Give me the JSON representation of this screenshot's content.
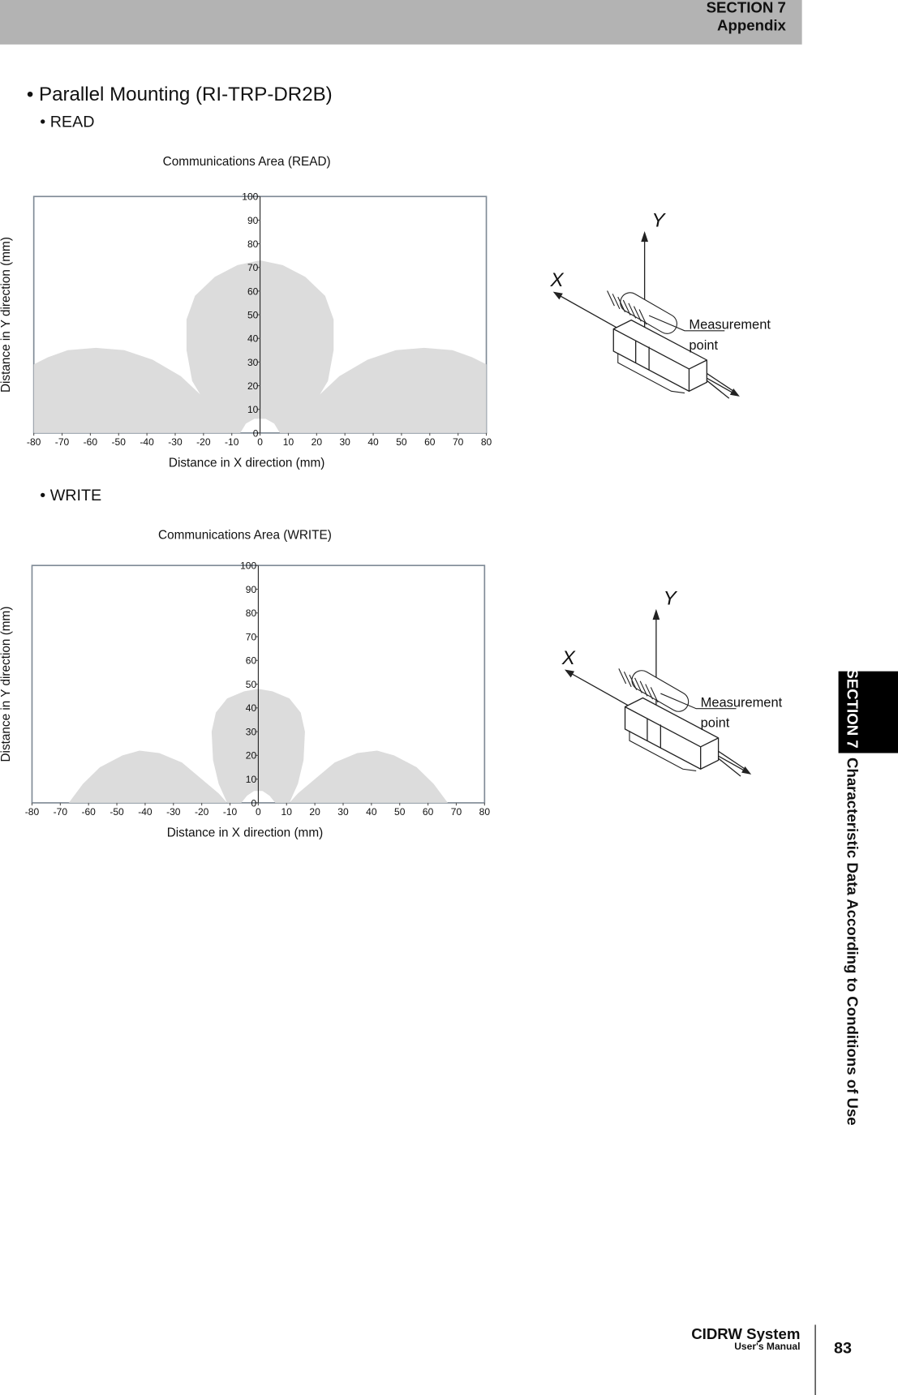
{
  "header": {
    "section": "SECTION 7",
    "title": "Appendix"
  },
  "heading": "• Parallel Mounting (RI-TRP-DR2B)",
  "subheadings": [
    "• READ",
    "• WRITE"
  ],
  "chart_data": [
    {
      "type": "area",
      "title": "Communications Area (READ)",
      "x_label": "Distance in X direction (mm)",
      "y_label": "Distance in Y direction (mm)",
      "xlim": [
        -80,
        80
      ],
      "ylim": [
        0,
        100
      ],
      "xticks": [
        -80,
        -70,
        -60,
        -50,
        -40,
        -30,
        -20,
        -10,
        0,
        10,
        20,
        30,
        40,
        50,
        60,
        70,
        80
      ],
      "yticks": [
        0,
        10,
        20,
        30,
        40,
        50,
        60,
        70,
        80,
        90,
        100
      ],
      "series": [
        {
          "color": "#dcdcdc",
          "x": [
            -80,
            -80,
            -75,
            -68,
            -58,
            -48,
            -38,
            -28,
            -20,
            -14,
            -11
          ],
          "values": [
            0,
            29,
            32,
            35,
            36,
            35,
            31,
            24,
            15,
            6,
            0
          ]
        },
        {
          "color": "#dcdcdc",
          "x": [
            -11,
            -18,
            -24,
            -26,
            -26,
            -23,
            -16,
            -8,
            0,
            8,
            16,
            23,
            26,
            26,
            24,
            18,
            11,
            7,
            5,
            2,
            -2,
            -5,
            -7
          ],
          "values": [
            0,
            10,
            22,
            35,
            48,
            58,
            66,
            71,
            73,
            71,
            66,
            58,
            48,
            35,
            22,
            10,
            0,
            0,
            4,
            6,
            6,
            4,
            0
          ]
        },
        {
          "color": "#dcdcdc",
          "x": [
            11,
            14,
            20,
            28,
            38,
            48,
            58,
            68,
            75,
            80,
            80
          ],
          "values": [
            0,
            6,
            15,
            24,
            31,
            35,
            36,
            35,
            32,
            29,
            0
          ]
        }
      ]
    },
    {
      "type": "area",
      "title": "Communications Area (WRITE)",
      "x_label": "Distance in X direction (mm)",
      "y_label": "Distance in Y direction (mm)",
      "xlim": [
        -80,
        80
      ],
      "ylim": [
        0,
        100
      ],
      "xticks": [
        -80,
        -70,
        -60,
        -50,
        -40,
        -30,
        -20,
        -10,
        0,
        10,
        20,
        30,
        40,
        50,
        60,
        70,
        80
      ],
      "yticks": [
        0,
        10,
        20,
        30,
        40,
        50,
        60,
        70,
        80,
        90,
        100
      ],
      "series": [
        {
          "color": "#dcdcdc",
          "x": [
            -67,
            -62,
            -56,
            -48,
            -42,
            -35,
            -27,
            -20,
            -14,
            -11
          ],
          "values": [
            0,
            8,
            15,
            20,
            22,
            21,
            17,
            10,
            4,
            0
          ]
        },
        {
          "color": "#dcdcdc",
          "x": [
            -11,
            -14,
            -16,
            -16.5,
            -15,
            -11,
            -5,
            0,
            5,
            11,
            15,
            16.5,
            16,
            14,
            11,
            6,
            4,
            1.5,
            -1.5,
            -4,
            -6
          ],
          "values": [
            0,
            8,
            18,
            30,
            38,
            44,
            47,
            48,
            47,
            44,
            38,
            30,
            18,
            8,
            0,
            0,
            3,
            5,
            5,
            3,
            0
          ]
        },
        {
          "color": "#dcdcdc",
          "x": [
            11,
            14,
            20,
            27,
            35,
            42,
            48,
            56,
            62,
            67
          ],
          "values": [
            0,
            4,
            10,
            17,
            21,
            22,
            20,
            15,
            8,
            0
          ]
        }
      ]
    }
  ],
  "diagrams": [
    {
      "x_axis": "X",
      "y_axis": "Y",
      "callout": [
        "Measurement",
        "point"
      ]
    },
    {
      "x_axis": "X",
      "y_axis": "Y",
      "callout": [
        "Measurement",
        "point"
      ]
    }
  ],
  "sidebar": {
    "tab": "SECTION 7",
    "title": "Characteristic Data According to Conditions of Use"
  },
  "footer": {
    "product": "CIDRW System",
    "manual": "User's Manual",
    "page": "83"
  }
}
